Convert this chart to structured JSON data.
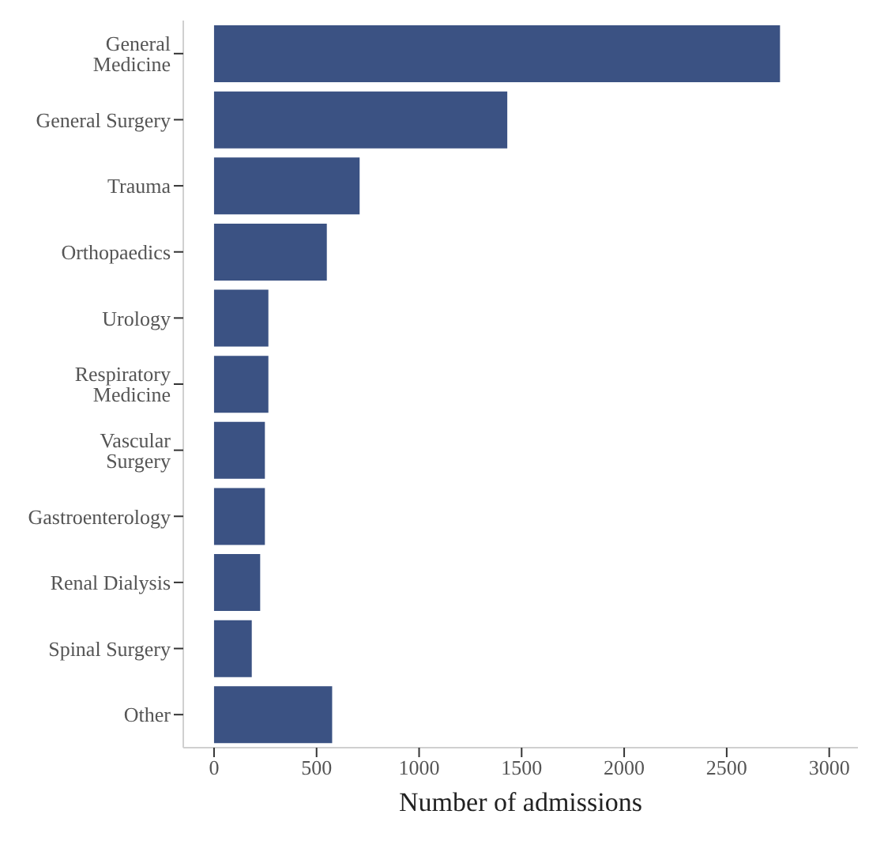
{
  "chart_data": {
    "type": "bar",
    "orientation": "horizontal",
    "xlabel": "Number of admissions",
    "categories": [
      "General Medicine",
      "General Surgery",
      "Trauma",
      "Orthopaedics",
      "Urology",
      "Respiratory Medicine",
      "Vascular Surgery",
      "Gastroenterology",
      "Renal Dialysis",
      "Spinal Surgery",
      "Other"
    ],
    "values": [
      2760,
      1430,
      710,
      550,
      265,
      265,
      248,
      248,
      225,
      184,
      576
    ],
    "color": "#3b5283",
    "xlim": [
      -150,
      3140
    ],
    "xticks": [
      0,
      500,
      1000,
      1500,
      2000,
      2500,
      3000
    ],
    "grid": false,
    "legend": false
  }
}
